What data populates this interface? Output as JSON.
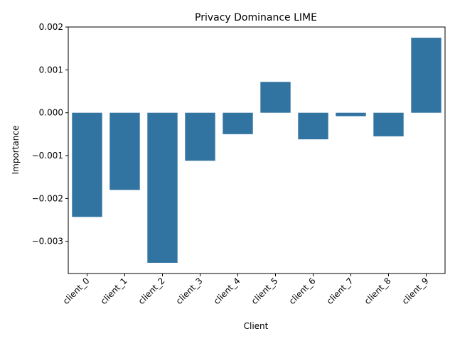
{
  "chart_data": {
    "type": "bar",
    "title": "Privacy Dominance LIME",
    "xlabel": "Client",
    "ylabel": "Importance",
    "categories": [
      "client_0",
      "client_1",
      "client_2",
      "client_3",
      "client_4",
      "client_5",
      "client_6",
      "client_7",
      "client_8",
      "client_9"
    ],
    "values": [
      -0.00243,
      -0.0018,
      -0.0035,
      -0.00112,
      -0.0005,
      0.00072,
      -0.00062,
      -8e-05,
      -0.00055,
      0.00175
    ],
    "ylim": [
      -0.00375,
      0.002
    ],
    "yticks": [
      -0.003,
      -0.002,
      -0.001,
      0.0,
      0.001,
      0.002
    ],
    "ytick_labels": [
      "−0.003",
      "−0.002",
      "−0.001",
      "0.000",
      "0.001",
      "0.002"
    ],
    "bar_color": "#3274a1",
    "grid": false,
    "xtick_rotation": 45
  }
}
